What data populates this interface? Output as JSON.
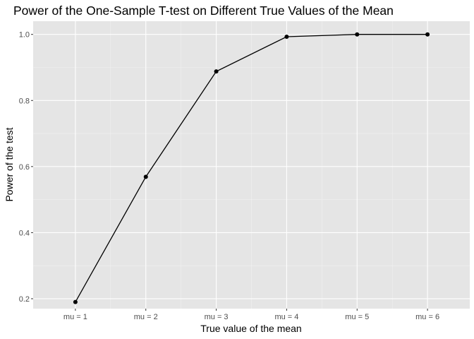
{
  "chart_data": {
    "type": "line",
    "title": "Power of the One-Sample T-test on Different True Values of the Mean",
    "xlabel": "True value of the mean",
    "ylabel": "Power of the test",
    "categories": [
      "mu = 1",
      "mu = 2",
      "mu = 3",
      "mu = 4",
      "mu = 5",
      "mu = 6"
    ],
    "values": [
      0.19,
      0.569,
      0.888,
      0.993,
      1.0,
      1.0
    ],
    "ylim": [
      0.17,
      1.04
    ],
    "yticks": [
      0.2,
      0.4,
      0.6,
      0.8,
      1.0
    ],
    "ytick_labels": [
      "0.2",
      "0.4",
      "0.6",
      "0.8",
      "1.0"
    ],
    "grid": true,
    "colors": {
      "panel_background": "#e5e5e5",
      "grid_major": "#ffffff",
      "line": "#000000",
      "points": "#000000"
    }
  }
}
